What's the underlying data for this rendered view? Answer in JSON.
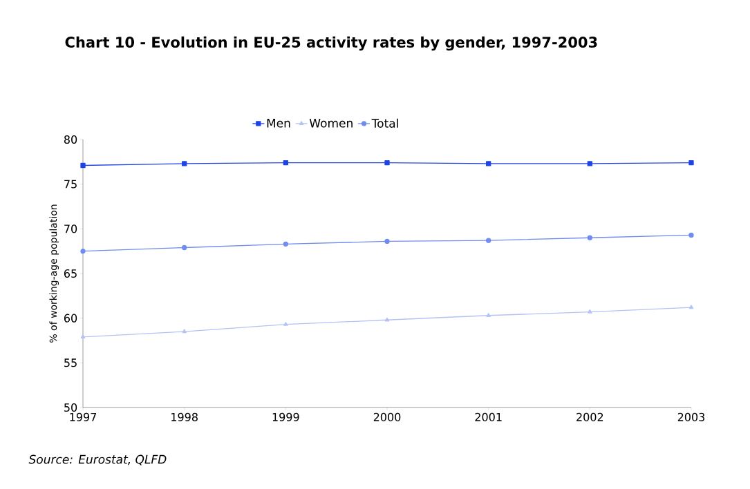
{
  "chart_data": {
    "type": "line",
    "title": "Chart 10 - Evolution in EU-25 activity rates by gender, 1997-2003",
    "ylabel": "% of working-age population",
    "annotations": [
      "*Source: Eurostat, QLFD*"
    ],
    "x": [
      1997,
      1998,
      1999,
      2000,
      2001,
      2002,
      2003
    ],
    "series": [
      {
        "name": "Men",
        "color": "#1f44e6",
        "marker": "square",
        "values": [
          77.1,
          77.3,
          77.4,
          77.4,
          77.3,
          77.3,
          77.4
        ]
      },
      {
        "name": "Women",
        "color": "#b4c2f4",
        "marker": "triangle",
        "values": [
          57.9,
          58.5,
          59.3,
          59.8,
          60.3,
          60.7,
          61.2
        ]
      },
      {
        "name": "Total",
        "color": "#6f8cee",
        "marker": "circle",
        "values": [
          67.5,
          67.9,
          68.3,
          68.6,
          68.7,
          69.0,
          69.3
        ]
      }
    ],
    "xlim": [
      1997,
      2003
    ],
    "xticks": [
      1997,
      1998,
      1999,
      2000,
      2001,
      2002,
      2003
    ],
    "ylim": [
      50,
      80
    ],
    "yticks": [
      50,
      55,
      60,
      65,
      70,
      75,
      80
    ],
    "grid": false,
    "legend": "top",
    "line_style": "solid"
  }
}
